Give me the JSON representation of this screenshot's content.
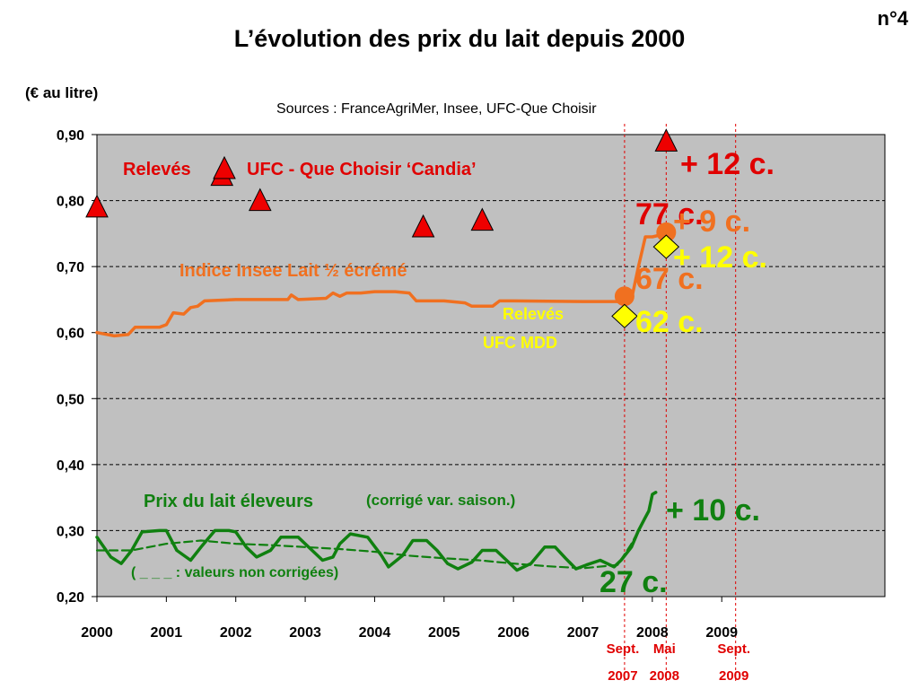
{
  "header": {
    "title": "L’évolution des prix du lait depuis 2000",
    "slide_number": "n°4",
    "unit": "(€ au litre)",
    "sources": "Sources : FranceAgriMer, Insee, UFC-Que Choisir"
  },
  "colors": {
    "plot_bg": "#c0c0c0",
    "red": "#e00000",
    "orange": "#f07020",
    "yellow": "#ffff00",
    "green": "#108010",
    "triangle": "#ee0000"
  },
  "chart_data": {
    "type": "line",
    "ylabel": "(€ au litre)",
    "ylim": [
      0.2,
      0.9
    ],
    "xlim": [
      2000,
      2011.35
    ],
    "y_ticks": [
      "0,20",
      "0,30",
      "0,40",
      "0,50",
      "0,60",
      "0,70",
      "0,80",
      "0,90"
    ],
    "y_tick_values": [
      0.2,
      0.3,
      0.4,
      0.5,
      0.6,
      0.7,
      0.8,
      0.9
    ],
    "x_ticks": [
      "2000",
      "2001",
      "2002",
      "2003",
      "2004",
      "2005",
      "2006",
      "2007",
      "2008",
      "2009"
    ],
    "x_tick_values": [
      2000,
      2001,
      2002,
      2003,
      2004,
      2005,
      2006,
      2007,
      2008,
      2009
    ],
    "grid": "horizontal dashed",
    "markers": [
      {
        "label": "Sept.",
        "year": "2007",
        "x": 2007.6
      },
      {
        "label": "Mai",
        "year": "2008",
        "x": 2008.2
      },
      {
        "label": "Sept.",
        "year": "2009",
        "x": 2009.2
      }
    ],
    "series": [
      {
        "name": "Indice Insee Lait ½ écrémé",
        "style": "orange-line",
        "points": [
          [
            2000.0,
            0.6
          ],
          [
            2000.25,
            0.595
          ],
          [
            2000.45,
            0.597
          ],
          [
            2000.55,
            0.608
          ],
          [
            2000.9,
            0.608
          ],
          [
            2001.0,
            0.612
          ],
          [
            2001.1,
            0.63
          ],
          [
            2001.25,
            0.628
          ],
          [
            2001.35,
            0.638
          ],
          [
            2001.45,
            0.64
          ],
          [
            2001.55,
            0.648
          ],
          [
            2002.0,
            0.65
          ],
          [
            2002.5,
            0.65
          ],
          [
            2002.75,
            0.65
          ],
          [
            2002.8,
            0.657
          ],
          [
            2002.9,
            0.65
          ],
          [
            2003.3,
            0.652
          ],
          [
            2003.4,
            0.66
          ],
          [
            2003.5,
            0.655
          ],
          [
            2003.6,
            0.66
          ],
          [
            2003.8,
            0.66
          ],
          [
            2004.0,
            0.662
          ],
          [
            2004.3,
            0.662
          ],
          [
            2004.5,
            0.66
          ],
          [
            2004.6,
            0.648
          ],
          [
            2005.0,
            0.648
          ],
          [
            2005.3,
            0.645
          ],
          [
            2005.4,
            0.64
          ],
          [
            2005.7,
            0.64
          ],
          [
            2005.8,
            0.648
          ],
          [
            2006.0,
            0.648
          ],
          [
            2007.0,
            0.647
          ],
          [
            2007.55,
            0.647
          ],
          [
            2007.7,
            0.65
          ],
          [
            2007.8,
            0.7
          ],
          [
            2007.9,
            0.745
          ],
          [
            2008.0,
            0.745
          ],
          [
            2008.2,
            0.75
          ]
        ]
      },
      {
        "name": "Prix du lait éleveurs",
        "style": "green-thick",
        "points": [
          [
            2000.0,
            0.29
          ],
          [
            2000.2,
            0.26
          ],
          [
            2000.35,
            0.25
          ],
          [
            2000.5,
            0.27
          ],
          [
            2000.65,
            0.298
          ],
          [
            2000.9,
            0.3
          ],
          [
            2001.0,
            0.3
          ],
          [
            2001.15,
            0.27
          ],
          [
            2001.35,
            0.255
          ],
          [
            2001.5,
            0.275
          ],
          [
            2001.7,
            0.3
          ],
          [
            2001.9,
            0.3
          ],
          [
            2002.0,
            0.298
          ],
          [
            2002.15,
            0.275
          ],
          [
            2002.3,
            0.26
          ],
          [
            2002.5,
            0.27
          ],
          [
            2002.65,
            0.29
          ],
          [
            2002.9,
            0.29
          ],
          [
            2003.1,
            0.27
          ],
          [
            2003.25,
            0.255
          ],
          [
            2003.4,
            0.26
          ],
          [
            2003.5,
            0.28
          ],
          [
            2003.65,
            0.295
          ],
          [
            2003.9,
            0.29
          ],
          [
            2004.1,
            0.262
          ],
          [
            2004.2,
            0.245
          ],
          [
            2004.4,
            0.262
          ],
          [
            2004.55,
            0.285
          ],
          [
            2004.75,
            0.285
          ],
          [
            2004.9,
            0.27
          ],
          [
            2005.05,
            0.25
          ],
          [
            2005.2,
            0.242
          ],
          [
            2005.4,
            0.252
          ],
          [
            2005.55,
            0.27
          ],
          [
            2005.75,
            0.27
          ],
          [
            2005.9,
            0.255
          ],
          [
            2006.05,
            0.24
          ],
          [
            2006.25,
            0.25
          ],
          [
            2006.45,
            0.275
          ],
          [
            2006.6,
            0.275
          ],
          [
            2006.75,
            0.258
          ],
          [
            2006.9,
            0.242
          ],
          [
            2007.05,
            0.248
          ],
          [
            2007.25,
            0.255
          ],
          [
            2007.35,
            0.25
          ],
          [
            2007.45,
            0.245
          ],
          [
            2007.55,
            0.255
          ],
          [
            2007.7,
            0.275
          ],
          [
            2007.8,
            0.3
          ],
          [
            2007.9,
            0.32
          ],
          [
            2007.95,
            0.33
          ],
          [
            2008.0,
            0.355
          ],
          [
            2008.05,
            0.358
          ]
        ]
      },
      {
        "name": "( _ _ _ : valeurs non corrigées)",
        "style": "green-dashed",
        "points": [
          [
            2000.0,
            0.27
          ],
          [
            2000.5,
            0.27
          ],
          [
            2001.0,
            0.28
          ],
          [
            2001.5,
            0.285
          ],
          [
            2002.0,
            0.28
          ],
          [
            2002.5,
            0.278
          ],
          [
            2003.0,
            0.275
          ],
          [
            2003.5,
            0.272
          ],
          [
            2004.0,
            0.268
          ],
          [
            2004.5,
            0.262
          ],
          [
            2005.0,
            0.258
          ],
          [
            2005.5,
            0.255
          ],
          [
            2006.0,
            0.25
          ],
          [
            2006.5,
            0.246
          ],
          [
            2007.0,
            0.243
          ],
          [
            2007.5,
            0.248
          ],
          [
            2007.7,
            0.28
          ],
          [
            2007.85,
            0.31
          ],
          [
            2007.95,
            0.33
          ]
        ]
      }
    ],
    "triangles_label": "Relevés",
    "triangles_label2": "UFC - Que Choisir  ‘Candia’",
    "triangles": [
      [
        2000.0,
        0.79
      ],
      [
        2001.8,
        0.838
      ],
      [
        2002.35,
        0.8
      ],
      [
        2004.7,
        0.76
      ],
      [
        2005.55,
        0.77
      ],
      [
        2008.2,
        0.89
      ]
    ],
    "orange_dots": [
      [
        2007.6,
        0.655
      ],
      [
        2008.2,
        0.752
      ]
    ],
    "diamonds": [
      [
        2007.6,
        0.625
      ],
      [
        2008.2,
        0.73
      ]
    ],
    "mdd_label_1": "Relevés",
    "mdd_label_2": "UFC MDD",
    "green_label_1": "Prix du lait éleveurs",
    "green_label_2": "(corrigé var. saison.)",
    "green_note": "( _ _ _ : valeurs non corrigées)",
    "annotations": {
      "red_plus": "+ 12 c.",
      "red_77": "77 c.",
      "orange_plus": "+ 9 c.",
      "orange_67": "67 c.",
      "yellow_plus": "+ 12 c.",
      "yellow_62": "62 c.",
      "green_plus": "+ 10 c.",
      "green_27": "27 c."
    }
  }
}
